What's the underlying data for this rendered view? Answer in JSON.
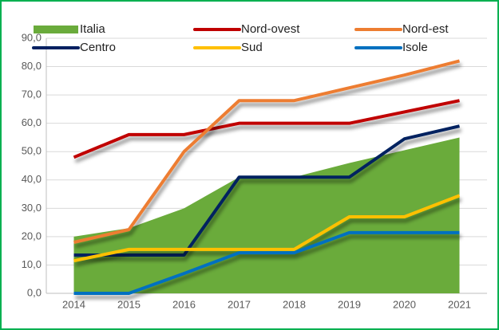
{
  "chart_data": {
    "type": "line",
    "categories": [
      "2014",
      "2015",
      "2016",
      "2017",
      "2018",
      "2019",
      "2020",
      "2021"
    ],
    "series": [
      {
        "name": "Italia",
        "type": "area",
        "color": "#6aab3b",
        "values": [
          20,
          23,
          30,
          41,
          41,
          46,
          50.5,
          55
        ]
      },
      {
        "name": "Nord-ovest",
        "color": "#c00000",
        "values": [
          48,
          56,
          56,
          60,
          60,
          60,
          64,
          68
        ]
      },
      {
        "name": "Nord-est",
        "color": "#ed7d31",
        "values": [
          18,
          22.5,
          50,
          68,
          68,
          72.5,
          77,
          82
        ]
      },
      {
        "name": "Centro",
        "color": "#002060",
        "values": [
          13.5,
          13.5,
          13.5,
          41,
          41,
          41,
          54.5,
          59
        ]
      },
      {
        "name": "Sud",
        "color": "#ffc000",
        "values": [
          11.5,
          15.5,
          15.5,
          15.5,
          15.5,
          27,
          27,
          34.5
        ]
      },
      {
        "name": "Isole",
        "color": "#0070c0",
        "values": [
          0,
          0,
          7,
          14.3,
          14.3,
          21.4,
          21.4,
          21.4
        ]
      }
    ],
    "ylim": [
      0,
      90
    ],
    "yticks": [
      {
        "value": 0,
        "label": "0,0"
      },
      {
        "value": 10,
        "label": "10,0"
      },
      {
        "value": 20,
        "label": "20,0"
      },
      {
        "value": 30,
        "label": "30,0"
      },
      {
        "value": 40,
        "label": "40,0"
      },
      {
        "value": 50,
        "label": "50,0"
      },
      {
        "value": 60,
        "label": "60,0"
      },
      {
        "value": 70,
        "label": "70,0"
      },
      {
        "value": 80,
        "label": "80,0"
      },
      {
        "value": 90,
        "label": "90,0"
      }
    ],
    "grid": true
  }
}
